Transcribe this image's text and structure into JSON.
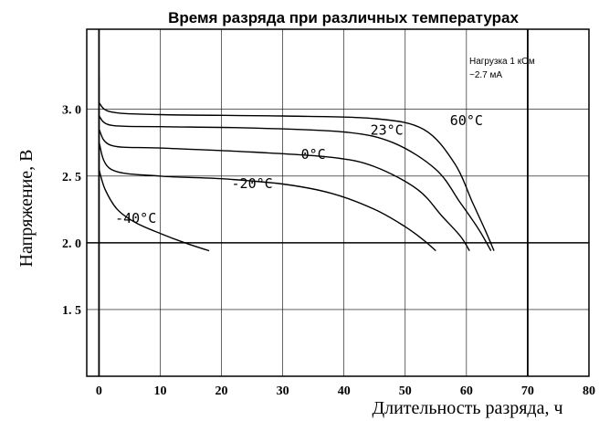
{
  "chart_data": {
    "type": "line",
    "title": "Время разряда при различных температурах",
    "xlabel": "Длительность разряда, ч",
    "ylabel": "Напряжение, В",
    "xlim": [
      -2,
      80
    ],
    "ylim": [
      1.0,
      3.6
    ],
    "x_ticks": [
      0,
      10,
      20,
      30,
      40,
      50,
      60,
      70,
      80
    ],
    "x_tick_labels": [
      "0",
      "10",
      "20",
      "30",
      "40",
      "50",
      "60",
      "70",
      "80"
    ],
    "y_ticks": [
      1.5,
      2.0,
      2.5,
      3.0
    ],
    "y_tick_labels": [
      "1. 5",
      "2. 0",
      "2. 5",
      "3. 0"
    ],
    "grid": true,
    "annotation_lines": [
      "Нагрузка 1 кОм",
      "~2.7 мА"
    ],
    "series": [
      {
        "name": "60°C",
        "label": "60°C",
        "x": [
          0,
          2,
          10,
          30,
          45,
          53,
          58,
          61,
          63,
          64.5
        ],
        "y": [
          3.05,
          2.98,
          2.96,
          2.95,
          2.93,
          2.85,
          2.6,
          2.3,
          2.1,
          1.94
        ]
      },
      {
        "name": "23°C",
        "label": "23°C",
        "x": [
          0,
          2,
          10,
          25,
          40,
          48,
          55,
          59,
          62,
          64
        ],
        "y": [
          2.95,
          2.88,
          2.87,
          2.86,
          2.83,
          2.75,
          2.55,
          2.3,
          2.1,
          1.94
        ]
      },
      {
        "name": "0°C",
        "label": "0°C",
        "x": [
          0,
          2,
          10,
          25,
          38,
          45,
          52,
          56,
          59,
          60.5
        ],
        "y": [
          2.85,
          2.73,
          2.71,
          2.68,
          2.64,
          2.57,
          2.4,
          2.2,
          2.05,
          1.94
        ]
      },
      {
        "name": "-20°C",
        "label": "-20°C",
        "x": [
          0,
          2,
          10,
          20,
          30,
          38,
          45,
          50,
          53,
          55
        ],
        "y": [
          2.75,
          2.55,
          2.5,
          2.48,
          2.44,
          2.37,
          2.25,
          2.12,
          2.02,
          1.94
        ]
      },
      {
        "name": "-40°C",
        "label": "-40°C",
        "x": [
          0,
          1,
          3,
          6,
          10,
          14,
          18
        ],
        "y": [
          2.55,
          2.4,
          2.25,
          2.15,
          2.07,
          2.0,
          1.94
        ]
      }
    ],
    "colors": {
      "line": "#000000",
      "grid": "#000000",
      "background": "#ffffff"
    }
  }
}
